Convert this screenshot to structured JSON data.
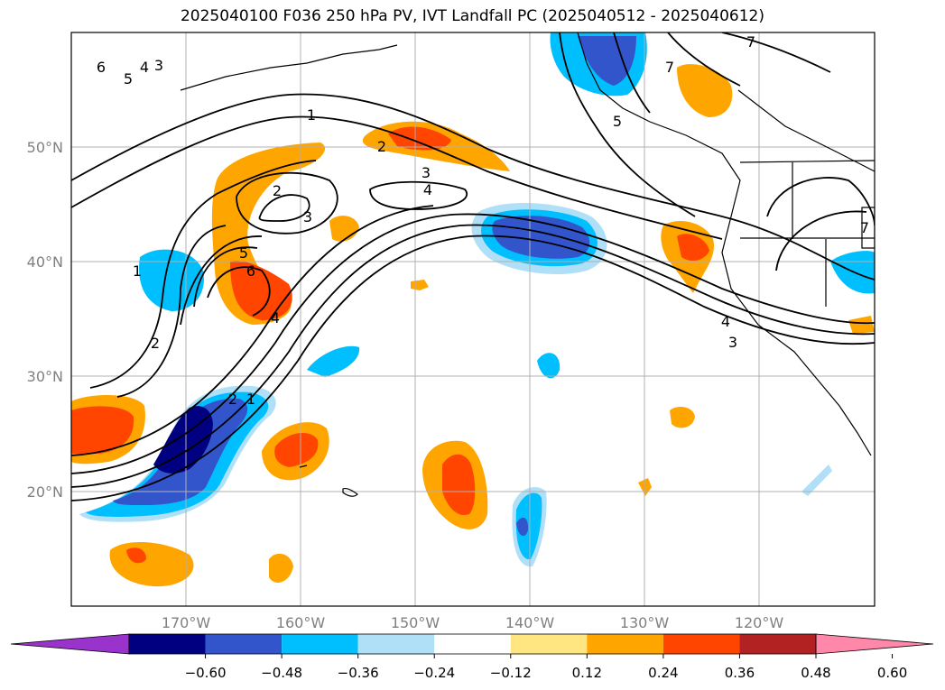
{
  "title": "2025040100 F036 250 hPa PV, IVT Landfall PC (2025040512 - 2025040612)",
  "map": {
    "lat_labels": [
      "50°N",
      "40°N",
      "30°N",
      "20°N"
    ],
    "lon_labels": [
      "170°W",
      "160°W",
      "150°W",
      "140°W",
      "130°W",
      "120°W"
    ],
    "grid": true,
    "tick_label_color": "#808080"
  },
  "contour_labels": [
    "1",
    "2",
    "3",
    "4",
    "5",
    "6",
    "7"
  ],
  "colorbar": {
    "orientation": "horizontal",
    "extend": "both",
    "colors": [
      "#9933cc",
      "#000080",
      "#3355cc",
      "#00bfff",
      "#b0e0f8",
      "#ffffff",
      "#ffe680",
      "#ffa500",
      "#ff4500",
      "#b22222",
      "#ff88aa"
    ],
    "tick_labels": [
      "−0.60",
      "−0.48",
      "−0.36",
      "−0.24",
      "−0.12",
      "0.12",
      "0.24",
      "0.36",
      "0.48",
      "0.60"
    ]
  }
}
